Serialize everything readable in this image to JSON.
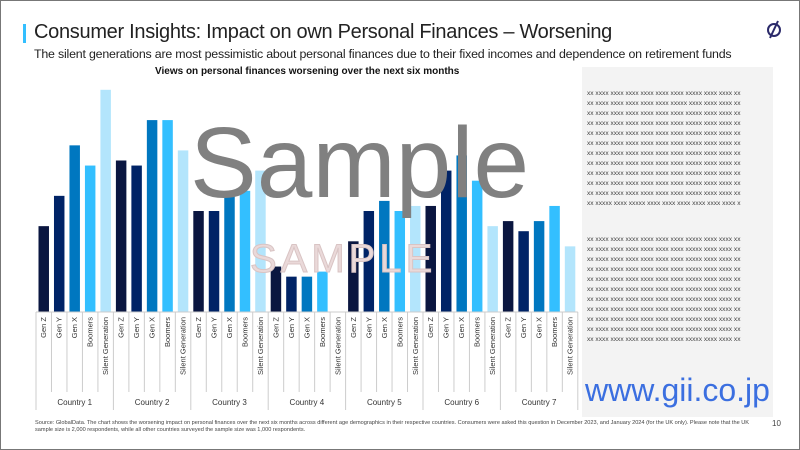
{
  "header": {
    "title": "Consumer Insights: Impact on own Personal Finances – Worsening",
    "subtitle": "The silent generations are most pessimistic about personal finances due to their fixed incomes and dependence on retirement funds"
  },
  "chart_data": {
    "type": "bar",
    "title": "Views on personal finances worsening over the next six months",
    "categories": [
      "Country 1",
      "Country 2",
      "Country 3",
      "Country 4",
      "Country 5",
      "Country 6",
      "Country 7"
    ],
    "series_labels": [
      "Gen Z",
      "Gen Y",
      "Gen X",
      "Boomers",
      "Silent Generation"
    ],
    "series": [
      {
        "name": "Gen Z",
        "color": "#0a1640",
        "values": [
          17,
          30,
          20,
          9,
          14,
          21,
          18
        ]
      },
      {
        "name": "Gen Y",
        "color": "#002366",
        "values": [
          23,
          29,
          20,
          7,
          20,
          28,
          16
        ]
      },
      {
        "name": "Gen X",
        "color": "#0077c0",
        "values": [
          33,
          38,
          23,
          7,
          22,
          31,
          18
        ]
      },
      {
        "name": "Boomers",
        "color": "#33bfff",
        "values": [
          29,
          38,
          24,
          8,
          20,
          26,
          21
        ]
      },
      {
        "name": "Silent Generation",
        "color": "#b3e5fc",
        "values": [
          44,
          32,
          28,
          0,
          21,
          17,
          13
        ]
      }
    ],
    "ylim": [
      0,
      50
    ],
    "xlabel": "",
    "ylabel": "",
    "grid": false,
    "legend": "none",
    "units": "% of respondents (estimated, no axis shown)"
  },
  "panel": {
    "block1": [
      "xx xxxx xxxx xxxx xxxx xxxx xxxx xxxxx xxxx xxxx xx",
      "xx xxxx xxxx xxxx xxxx xxxx xxxxx xxxx xxxx xxxx xx",
      "xx xxxx xxxx xxxx xxxx xxxx xxxx xxxxx xxxx xxxx xx",
      "xx xxxx xxxx xxxx xxxx xxxx xxxx xxxxx xxxx xxxx xx",
      "xx xxxx xxxx xxxx xxxx xxxx xxxx xxxxx xxxx xxxx xx",
      "xx xxxx xxxx xxxx xxxx xxxx xxxx xxxxx xxxx xxxx xx",
      "xx xxxx xxxx xxxx xxxx xxxx xxxx xxxxx xxxx xxxx xx",
      "xx xxxx xxxx xxxx xxxx xxxx xxxx xxxxx xxxx xxxx xx",
      "xx xxxx xxxx xxxx xxxx xxxx xxxx xxxxx xxxx xxxx xx",
      "xx xxxx xxxx xxxx xxxx xxxx xxxx xxxxx xxxx xxxx xx",
      "xx xxxx xxxx xxxx xxxx xxxx xxxx xxxxx xxxx xxxx xx",
      "xx xxxxx xxxx xxxxx xxxx xxxx xxxx xxxx xxxx xxxx x"
    ],
    "block2": [
      "xx xxxx xxxx xxxx xxxx xxxx xxxx xxxxx xxxx xxxx xx",
      "xx xxxx xxxx xxxx xxxx xxxx xxxx xxxxx xxxx xxxx xx",
      "xx xxxx xxxx xxxx xxxx xxxx xxxx xxxxx xxxx xxxx xx",
      "xx xxxx xxxx xxxx xxxx xxxx xxxx xxxxx xxxx xxxx xx",
      "xx xxxx xxxx xxxx xxxx xxxx xxxx xxxxx xxxx xxxx xx",
      "xx xxxx xxxx xxxx xxxx xxxx xxxx xxxxx xxxx xxxx xx",
      "xx xxxx xxxx xxxx xxxx xxxx xxxx xxxxx xxxx xxxx xx",
      "xx xxxx xxxx xxxx xxxx xxxx xxxx xxxxx xxxx xxxx xx",
      "xx xxxx xxxx xxxx xxxx xxxx xxxx xxxxx xxxx xxxx xx",
      "xx xxxx xxxx xxxx xxxx xxxx xxxx xxxxx xxxx xxxx xx",
      "xx xxxx xxxx xxxx xxxx xxxx xxxx xxxxx xxxx xxxx xx"
    ]
  },
  "footer": {
    "source": "Source: GlobalData. The chart shows the worsening impact on personal finances over the next six months across different age demographics in their respective countries. Consumers were asked this question in December 2023, and January 2024 (for the UK only). Please note that the UK sample size is 2,000 respondents, while all other countries surveyed the sample size was 1,000 respondents.",
    "page_number": "10"
  },
  "watermarks": {
    "sample": "Sample",
    "sample_outline": "SAMPLE",
    "url": "www.gii.co.jp"
  },
  "colors": {
    "accent": "#33bfff"
  }
}
